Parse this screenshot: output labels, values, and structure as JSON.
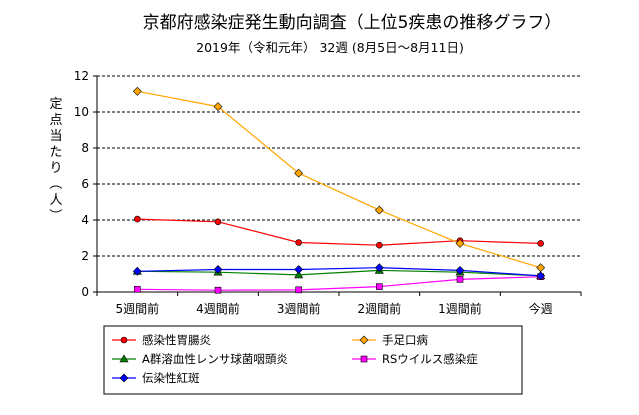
{
  "chart_data": {
    "type": "line",
    "title": "京都府感染症発生動向調査（上位5疾患の推移グラフ）",
    "subtitle": "2019年（令和元年） 32週 (8月5日～8月11日)",
    "ylabel": "定点当たり（人）",
    "xlabel": "",
    "ylim": [
      0,
      12
    ],
    "yticks": [
      0,
      2,
      4,
      6,
      8,
      10,
      12
    ],
    "grid": true,
    "legend_position": "bottom",
    "categories": [
      "5週間前",
      "4週間前",
      "3週間前",
      "2週間前",
      "1週間前",
      "今週"
    ],
    "series": [
      {
        "name": "感染性胃腸炎",
        "color": "#ff0000",
        "marker": "circle",
        "values": [
          4.05,
          3.9,
          2.75,
          2.6,
          2.85,
          2.7
        ]
      },
      {
        "name": "手足口病",
        "color": "#ffa500",
        "marker": "diamond",
        "values": [
          11.15,
          10.3,
          6.6,
          4.55,
          2.7,
          1.35
        ]
      },
      {
        "name": "A群溶血性レンサ球菌咽頭炎",
        "color": "#008000",
        "marker": "triangle",
        "values": [
          1.15,
          1.1,
          0.95,
          1.2,
          1.1,
          0.9
        ]
      },
      {
        "name": "RSウイルス感染症",
        "color": "#ff00ff",
        "marker": "square",
        "values": [
          0.15,
          0.1,
          0.12,
          0.3,
          0.7,
          0.85
        ]
      },
      {
        "name": "伝染性紅斑",
        "color": "#0000ff",
        "marker": "diamond",
        "values": [
          1.15,
          1.25,
          1.25,
          1.35,
          1.2,
          0.9
        ]
      }
    ]
  }
}
